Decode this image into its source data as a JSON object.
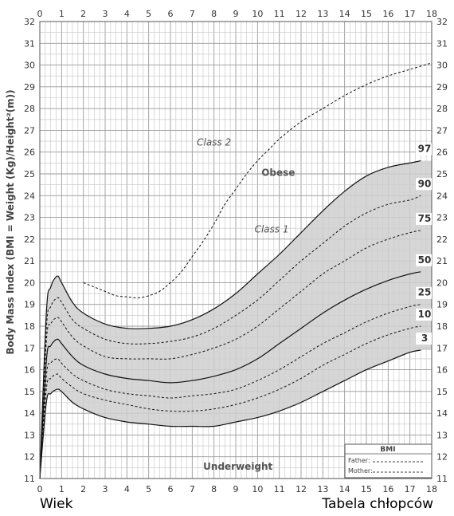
{
  "chart_data": {
    "type": "line",
    "ylabel": "Body Mass Index (BMI = Weight (Kg)/Height²(m))",
    "xlim": [
      0,
      18
    ],
    "ylim": [
      11,
      32
    ],
    "x_ticks": [
      "0",
      "1",
      "2",
      "3",
      "4",
      "5",
      "6",
      "7",
      "8",
      "9",
      "10",
      "11",
      "12",
      "13",
      "14",
      "15",
      "16",
      "17",
      "18"
    ],
    "y_ticks": [
      "11",
      "12",
      "13",
      "14",
      "15",
      "16",
      "17",
      "18",
      "19",
      "20",
      "21",
      "22",
      "23",
      "24",
      "25",
      "26",
      "27",
      "28",
      "29",
      "30",
      "31",
      "32"
    ],
    "grid": true,
    "shaded_band": "between percentile 3 and 97",
    "series": [
      {
        "name": "97",
        "style": "solid",
        "x": [
          0,
          0.3,
          0.5,
          0.8,
          1,
          1.5,
          2,
          3,
          4,
          5,
          6,
          7,
          8,
          9,
          10,
          11,
          12,
          13,
          14,
          15,
          16,
          17,
          17.5
        ],
        "y": [
          11,
          18.6,
          19.8,
          20.3,
          20.0,
          19.1,
          18.6,
          18.1,
          17.9,
          17.9,
          18.0,
          18.3,
          18.8,
          19.5,
          20.4,
          21.3,
          22.3,
          23.3,
          24.2,
          24.9,
          25.3,
          25.5,
          25.6
        ]
      },
      {
        "name": "90",
        "style": "dashed",
        "x": [
          0,
          0.3,
          0.5,
          0.8,
          1,
          1.5,
          2,
          3,
          4,
          5,
          6,
          7,
          8,
          9,
          10,
          11,
          12,
          13,
          14,
          15,
          16,
          17,
          17.5
        ],
        "y": [
          11,
          17.9,
          18.9,
          19.3,
          19.1,
          18.3,
          17.9,
          17.4,
          17.2,
          17.2,
          17.3,
          17.5,
          17.9,
          18.5,
          19.2,
          20.1,
          21.0,
          21.8,
          22.6,
          23.2,
          23.6,
          23.8,
          24.0
        ]
      },
      {
        "name": "75",
        "style": "dashed",
        "x": [
          0,
          0.3,
          0.5,
          0.8,
          1,
          1.5,
          2,
          3,
          4,
          5,
          6,
          7,
          8,
          9,
          10,
          11,
          12,
          13,
          14,
          15,
          16,
          17,
          17.5
        ],
        "y": [
          11,
          17.3,
          18.1,
          18.4,
          18.2,
          17.5,
          17.1,
          16.6,
          16.5,
          16.5,
          16.5,
          16.7,
          17.0,
          17.4,
          18.0,
          18.8,
          19.6,
          20.4,
          21.0,
          21.6,
          22.0,
          22.3,
          22.4
        ]
      },
      {
        "name": "50",
        "style": "solid",
        "x": [
          0,
          0.3,
          0.5,
          0.8,
          1,
          1.5,
          2,
          3,
          4,
          5,
          6,
          7,
          8,
          9,
          10,
          11,
          12,
          13,
          14,
          15,
          16,
          17,
          17.5
        ],
        "y": [
          11,
          16.4,
          17.1,
          17.4,
          17.2,
          16.6,
          16.2,
          15.8,
          15.6,
          15.5,
          15.4,
          15.5,
          15.7,
          16.0,
          16.5,
          17.2,
          17.9,
          18.6,
          19.2,
          19.7,
          20.1,
          20.4,
          20.5
        ]
      },
      {
        "name": "25",
        "style": "dashed",
        "x": [
          0,
          0.3,
          0.5,
          0.8,
          1,
          1.5,
          2,
          3,
          4,
          5,
          6,
          7,
          8,
          9,
          10,
          11,
          12,
          13,
          14,
          15,
          16,
          17,
          17.5
        ],
        "y": [
          11,
          15.7,
          16.3,
          16.5,
          16.3,
          15.8,
          15.5,
          15.1,
          14.9,
          14.8,
          14.7,
          14.8,
          14.9,
          15.1,
          15.5,
          16.0,
          16.6,
          17.2,
          17.7,
          18.2,
          18.6,
          18.9,
          19.0
        ]
      },
      {
        "name": "10",
        "style": "dashed",
        "x": [
          0,
          0.3,
          0.5,
          0.8,
          1,
          1.5,
          2,
          3,
          4,
          5,
          6,
          7,
          8,
          9,
          10,
          11,
          12,
          13,
          14,
          15,
          16,
          17,
          17.5
        ],
        "y": [
          11,
          15.1,
          15.6,
          15.8,
          15.6,
          15.2,
          14.9,
          14.6,
          14.4,
          14.2,
          14.1,
          14.1,
          14.2,
          14.4,
          14.7,
          15.1,
          15.6,
          16.2,
          16.7,
          17.2,
          17.6,
          17.9,
          18.0
        ]
      },
      {
        "name": "3",
        "style": "solid",
        "x": [
          0,
          0.3,
          0.5,
          0.8,
          1,
          1.5,
          2,
          3,
          4,
          5,
          6,
          7,
          8,
          9,
          10,
          11,
          12,
          13,
          14,
          15,
          16,
          17,
          17.5
        ],
        "y": [
          11,
          14.5,
          14.9,
          15.1,
          15.0,
          14.5,
          14.2,
          13.8,
          13.6,
          13.5,
          13.4,
          13.4,
          13.4,
          13.6,
          13.8,
          14.1,
          14.5,
          15.0,
          15.5,
          16.0,
          16.4,
          16.8,
          16.9
        ]
      },
      {
        "name": "Class 1 / Class 2 boundary",
        "style": "dashed",
        "x": [
          2,
          2.5,
          3,
          3.5,
          4,
          4.5,
          5,
          5.5,
          6,
          6.5,
          7,
          7.5,
          8,
          8.5,
          9,
          9.5,
          10,
          10.5,
          11,
          12,
          13,
          14,
          15,
          16,
          17,
          18
        ],
        "y": [
          20.0,
          19.8,
          19.6,
          19.4,
          19.35,
          19.3,
          19.4,
          19.6,
          20.0,
          20.5,
          21.2,
          21.9,
          22.7,
          23.6,
          24.3,
          25.0,
          25.6,
          26.1,
          26.6,
          27.4,
          28.0,
          28.6,
          29.1,
          29.5,
          29.8,
          30.1
        ]
      }
    ],
    "percentile_labels": [
      "97",
      "90",
      "75",
      "50",
      "25",
      "10",
      "3"
    ],
    "annotations": {
      "class2": "Class 2",
      "obese": "Obese",
      "class1": "Class 1",
      "underweight": "Underweight"
    },
    "legend": {
      "title": "BMI",
      "father": "Father:",
      "mother": "Mother:",
      "placement": "bottom-right"
    }
  },
  "footer": {
    "left": "Wiek",
    "right": "Tabela chłopców"
  }
}
